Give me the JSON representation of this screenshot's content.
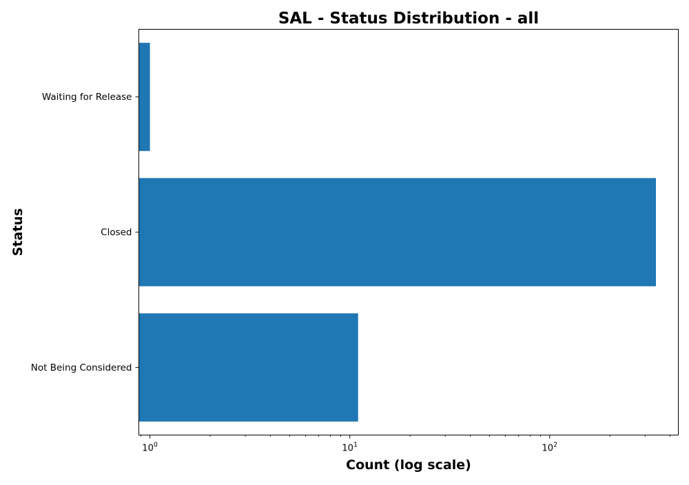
{
  "chart_data": {
    "type": "bar",
    "orientation": "horizontal",
    "title": "SAL - Status Distribution - all",
    "xlabel": "Count (log scale)",
    "ylabel": "Status",
    "x_scale": "log",
    "xlim": [
      0.88,
      440
    ],
    "grid": false,
    "categories": [
      "Not Being Considered",
      "Closed",
      "Waiting for Release"
    ],
    "values": [
      11,
      340,
      1
    ],
    "x_major_ticks": [
      {
        "value": 1,
        "base": "10",
        "exponent": "0"
      },
      {
        "value": 10,
        "base": "10",
        "exponent": "1"
      },
      {
        "value": 100,
        "base": "10",
        "exponent": "2"
      }
    ],
    "bar_color": "#1f77b4"
  }
}
